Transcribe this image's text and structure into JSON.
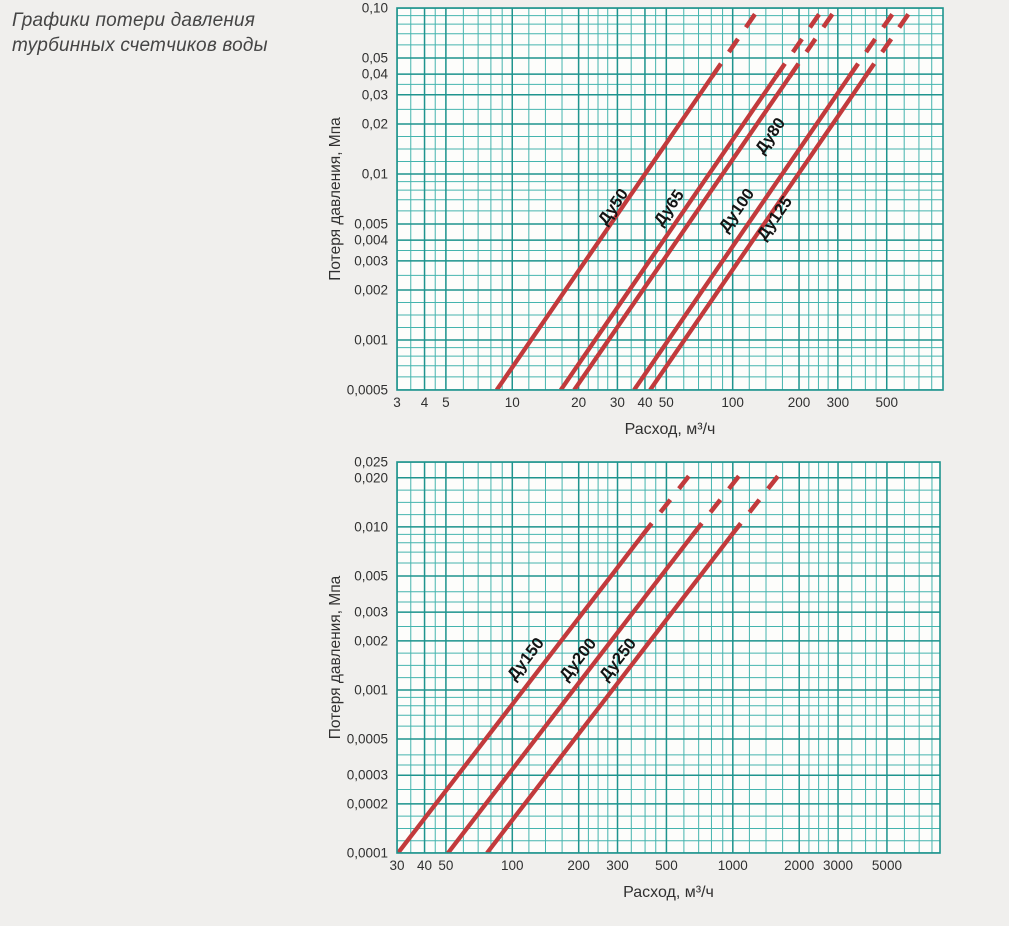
{
  "page": {
    "title_line1": "Графики потери давления",
    "title_line2": "турбинных счетчиков воды"
  },
  "colors": {
    "page_background": "#f0efed",
    "plot_background": "#fdfdfb",
    "grid_minor": "#45b4ae",
    "grid_major": "#1f948e",
    "series_line": "#c23a3c",
    "tick_text": "#303030",
    "series_label_text": "#141414",
    "title_text": "#454545"
  },
  "chart_data": [
    {
      "type": "line",
      "title": "",
      "xlabel": "Расход, м³/ч",
      "ylabel": "Потеря давления, Мпа",
      "x_scale": "log",
      "y_scale": "log",
      "xlim": [
        3,
        900
      ],
      "ylim": [
        0.0005,
        0.1
      ],
      "grid": "pseudo-log graph paper",
      "legend_position": "labels-on-lines",
      "x_ticks": [
        {
          "v": 3,
          "label": "3"
        },
        {
          "v": 4,
          "label": "4"
        },
        {
          "v": 5,
          "label": "5"
        },
        {
          "v": 10,
          "label": "10"
        },
        {
          "v": 20,
          "label": "20"
        },
        {
          "v": 30,
          "label": "30"
        },
        {
          "v": 40,
          "label": "40"
        },
        {
          "v": 50,
          "label": "50"
        },
        {
          "v": 100,
          "label": "100"
        },
        {
          "v": 200,
          "label": "200"
        },
        {
          "v": 300,
          "label": "300"
        },
        {
          "v": 500,
          "label": "500"
        }
      ],
      "y_ticks": [
        {
          "v": 0.1,
          "label": "0,10"
        },
        {
          "v": 0.05,
          "label": "0,05"
        },
        {
          "v": 0.04,
          "label": "0,04"
        },
        {
          "v": 0.03,
          "label": "0,03"
        },
        {
          "v": 0.02,
          "label": "0,02"
        },
        {
          "v": 0.01,
          "label": "0,01"
        },
        {
          "v": 0.005,
          "label": "0,005"
        },
        {
          "v": 0.004,
          "label": "0,004"
        },
        {
          "v": 0.003,
          "label": "0,003"
        },
        {
          "v": 0.002,
          "label": "0,002"
        },
        {
          "v": 0.001,
          "label": "0,001"
        },
        {
          "v": 0.0005,
          "label": "0,0005"
        }
      ],
      "series": [
        {
          "name": "Ду50",
          "points": [
            [
              8.5,
              0.0005
            ],
            [
              80.5,
              0.0385
            ],
            [
              132,
              0.1
            ]
          ],
          "dashed_from_point": 1
        },
        {
          "name": "Ду65",
          "points": [
            [
              16.6,
              0.0005
            ],
            [
              157,
              0.0385
            ],
            [
              258,
              0.1
            ]
          ],
          "dashed_from_point": 1
        },
        {
          "name": "Ду80",
          "points": [
            [
              19.1,
              0.0005
            ],
            [
              181,
              0.0385
            ],
            [
              296,
              0.1
            ]
          ],
          "dashed_from_point": 1
        },
        {
          "name": "Ду100",
          "points": [
            [
              35.7,
              0.0005
            ],
            [
              337,
              0.0385
            ],
            [
              554,
              0.1
            ]
          ],
          "dashed_from_point": 1
        },
        {
          "name": "Ду125",
          "points": [
            [
              42.2,
              0.0005
            ],
            [
              399,
              0.0385
            ],
            [
              655,
              0.1
            ]
          ],
          "dashed_from_point": 1
        }
      ],
      "labels": [
        {
          "text": "Ду50",
          "q": 30,
          "p": 0.0061,
          "rot": -55
        },
        {
          "text": "Ду65",
          "q": 53.8,
          "p": 0.006,
          "rot": -55
        },
        {
          "text": "Ду100",
          "q": 109,
          "p": 0.0058,
          "rot": -55
        },
        {
          "text": "Ду80",
          "q": 155,
          "p": 0.0163,
          "rot": -55
        },
        {
          "text": "Ду125",
          "q": 162,
          "p": 0.0052,
          "rot": -55
        }
      ]
    },
    {
      "type": "line",
      "title": "",
      "xlabel": "Расход, м³/ч",
      "ylabel": "Потеря давления, Мпа",
      "x_scale": "log",
      "y_scale": "log",
      "xlim": [
        30,
        8700
      ],
      "ylim": [
        0.0001,
        0.025
      ],
      "grid": "pseudo-log graph paper",
      "legend_position": "labels-on-lines",
      "x_ticks": [
        {
          "v": 30,
          "label": "30"
        },
        {
          "v": 40,
          "label": "40"
        },
        {
          "v": 50,
          "label": "50"
        },
        {
          "v": 100,
          "label": "100"
        },
        {
          "v": 200,
          "label": "200"
        },
        {
          "v": 300,
          "label": "300"
        },
        {
          "v": 500,
          "label": "500"
        },
        {
          "v": 1000,
          "label": "1000"
        },
        {
          "v": 2000,
          "label": "2000"
        },
        {
          "v": 3000,
          "label": "3000"
        },
        {
          "v": 5000,
          "label": "5000"
        }
      ],
      "y_ticks": [
        {
          "v": 0.025,
          "label": "0,025"
        },
        {
          "v": 0.02,
          "label": "0,020"
        },
        {
          "v": 0.01,
          "label": "0,010"
        },
        {
          "v": 0.005,
          "label": "0,005"
        },
        {
          "v": 0.003,
          "label": "0,003"
        },
        {
          "v": 0.002,
          "label": "0,002"
        },
        {
          "v": 0.001,
          "label": "0,001"
        },
        {
          "v": 0.0005,
          "label": "0,0005"
        },
        {
          "v": 0.0003,
          "label": "0,0003"
        },
        {
          "v": 0.0002,
          "label": "0,0002"
        },
        {
          "v": 0.0001,
          "label": "0,0001"
        }
      ],
      "series": [
        {
          "name": "Ду150",
          "points": [
            [
              30.3,
              0.0001
            ],
            [
              387,
              0.0088
            ],
            [
              684,
              0.0235
            ]
          ],
          "dashed_from_point": 1
        },
        {
          "name": "Ду200",
          "points": [
            [
              51.1,
              0.0001
            ],
            [
              652,
              0.0088
            ],
            [
              1154,
              0.0235
            ]
          ],
          "dashed_from_point": 1
        },
        {
          "name": "Ду250",
          "points": [
            [
              76.8,
              0.0001
            ],
            [
              980,
              0.0088
            ],
            [
              1735,
              0.0235
            ]
          ],
          "dashed_from_point": 1
        }
      ],
      "labels": [
        {
          "text": "Ду150",
          "q": 120,
          "p": 0.00148,
          "rot": -52
        },
        {
          "text": "Ду200",
          "q": 207,
          "p": 0.00147,
          "rot": -52
        },
        {
          "text": "Ду250",
          "q": 314,
          "p": 0.00147,
          "rot": -52
        }
      ]
    }
  ]
}
